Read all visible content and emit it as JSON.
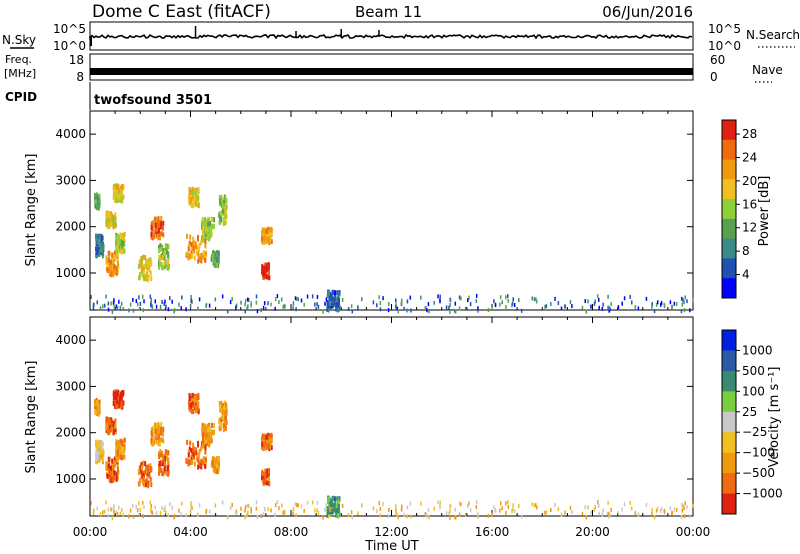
{
  "header": {
    "title": "Dome C East (fitACF)",
    "beam": "Beam 11",
    "date": "06/Jun/2016"
  },
  "summary": {
    "nsky_label": "N.Sky",
    "nsky_ticks": [
      "10^5",
      "10^0"
    ],
    "nsearch_label": "N.Search",
    "freq_label": "Freq.",
    "freq_unit": "[MHz]",
    "freq_ticks": [
      "18",
      "8"
    ],
    "nave_ticks": [
      "60",
      "0"
    ],
    "nave_label": "Nave",
    "cpid_label": "CPID",
    "cpid_value": "twofsound 3501"
  },
  "chart_data": [
    {
      "type": "heatmap",
      "name": "power",
      "ylabel": "Slant Range [km]",
      "ylim": [
        200,
        4500
      ],
      "yticks": [
        1000,
        2000,
        3000,
        4000
      ],
      "xlim": [
        0,
        24
      ],
      "colorbar_label": "Power [dB]",
      "colorbar_ticks": [
        "4",
        "8",
        "12",
        "16",
        "20",
        "24",
        "28"
      ],
      "colors": [
        "#0000ff",
        "#2050b0",
        "#3a8a8a",
        "#5aa050",
        "#8ecf3a",
        "#f0c020",
        "#f09a10",
        "#f06a10",
        "#e02010"
      ],
      "clusters": [
        {
          "t": [
            0.15,
            0.35
          ],
          "r": [
            2450,
            2750
          ],
          "c": 3
        },
        {
          "t": [
            0.2,
            0.5
          ],
          "r": [
            1400,
            1850
          ],
          "c": 2
        },
        {
          "t": [
            0.6,
            1.0
          ],
          "r": [
            2050,
            2350
          ],
          "c": 5
        },
        {
          "t": [
            0.6,
            1.1
          ],
          "r": [
            1000,
            1500
          ],
          "c": 6
        },
        {
          "t": [
            0.9,
            1.3
          ],
          "r": [
            2600,
            2950
          ],
          "c": 5
        },
        {
          "t": [
            1.0,
            1.35
          ],
          "r": [
            1500,
            1900
          ],
          "c": 4
        },
        {
          "t": [
            1.9,
            2.4
          ],
          "r": [
            900,
            1400
          ],
          "c": 5
        },
        {
          "t": [
            2.4,
            2.9
          ],
          "r": [
            1800,
            2250
          ],
          "c": 7
        },
        {
          "t": [
            2.7,
            3.1
          ],
          "r": [
            1150,
            1650
          ],
          "c": 4
        },
        {
          "t": [
            3.9,
            4.3
          ],
          "r": [
            2500,
            2900
          ],
          "c": 5
        },
        {
          "t": [
            3.8,
            4.6
          ],
          "r": [
            1300,
            1850
          ],
          "c": 6
        },
        {
          "t": [
            4.4,
            4.9
          ],
          "r": [
            1750,
            2250
          ],
          "c": 4
        },
        {
          "t": [
            4.8,
            5.1
          ],
          "r": [
            1200,
            1500
          ],
          "c": 3
        },
        {
          "t": [
            5.1,
            5.4
          ],
          "r": [
            2100,
            2700
          ],
          "c": 4
        },
        {
          "t": [
            6.8,
            7.2
          ],
          "r": [
            1700,
            2000
          ],
          "c": 6
        },
        {
          "t": [
            6.8,
            7.1
          ],
          "r": [
            950,
            1250
          ],
          "c": 8
        },
        {
          "t": [
            9.4,
            9.9
          ],
          "r": [
            250,
            650
          ],
          "c": 1
        }
      ]
    },
    {
      "type": "heatmap",
      "name": "velocity",
      "ylabel": "Slant Range [km]",
      "xlabel": "Time UT",
      "ylim": [
        200,
        4500
      ],
      "yticks": [
        1000,
        2000,
        3000,
        4000
      ],
      "xlim": [
        0,
        24
      ],
      "xticks": [
        "00:00",
        "04:00",
        "08:00",
        "12:00",
        "16:00",
        "20:00",
        "00:00"
      ],
      "colorbar_label": "Velocity [m s⁻¹]",
      "colorbar_ticks": [
        "1000",
        "500",
        "100",
        "25",
        "−25",
        "−100",
        "−500",
        "−1000"
      ],
      "colors": [
        "#0020e0",
        "#2a5aa8",
        "#3a8a70",
        "#7acf40",
        "#c8c8c8",
        "#f0c020",
        "#f09a10",
        "#f06a10",
        "#e02010"
      ],
      "clusters": [
        {
          "t": [
            0.15,
            0.35
          ],
          "r": [
            2450,
            2750
          ],
          "c": 6
        },
        {
          "t": [
            0.2,
            0.5
          ],
          "r": [
            1400,
            1850
          ],
          "c": 5
        },
        {
          "t": [
            0.6,
            1.0
          ],
          "r": [
            2050,
            2350
          ],
          "c": 7
        },
        {
          "t": [
            0.6,
            1.1
          ],
          "r": [
            1000,
            1500
          ],
          "c": 7
        },
        {
          "t": [
            0.9,
            1.3
          ],
          "r": [
            2600,
            2950
          ],
          "c": 8
        },
        {
          "t": [
            1.0,
            1.35
          ],
          "r": [
            1500,
            1900
          ],
          "c": 6
        },
        {
          "t": [
            1.9,
            2.4
          ],
          "r": [
            900,
            1400
          ],
          "c": 7
        },
        {
          "t": [
            2.4,
            2.9
          ],
          "r": [
            1800,
            2250
          ],
          "c": 6
        },
        {
          "t": [
            2.7,
            3.1
          ],
          "r": [
            1150,
            1650
          ],
          "c": 7
        },
        {
          "t": [
            3.9,
            4.3
          ],
          "r": [
            2500,
            2900
          ],
          "c": 7
        },
        {
          "t": [
            3.8,
            4.6
          ],
          "r": [
            1300,
            1850
          ],
          "c": 7
        },
        {
          "t": [
            4.4,
            4.9
          ],
          "r": [
            1750,
            2250
          ],
          "c": 6
        },
        {
          "t": [
            4.8,
            5.1
          ],
          "r": [
            1200,
            1500
          ],
          "c": 6
        },
        {
          "t": [
            5.1,
            5.4
          ],
          "r": [
            2100,
            2700
          ],
          "c": 6
        },
        {
          "t": [
            6.8,
            7.2
          ],
          "r": [
            1700,
            2000
          ],
          "c": 7
        },
        {
          "t": [
            6.8,
            7.1
          ],
          "r": [
            950,
            1250
          ],
          "c": 7
        },
        {
          "t": [
            9.4,
            9.9
          ],
          "r": [
            250,
            650
          ],
          "c": 2
        }
      ]
    }
  ]
}
